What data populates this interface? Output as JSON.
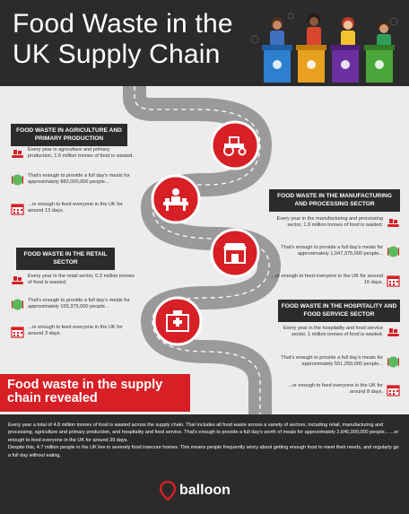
{
  "header": {
    "title": "Food Waste in the UK Supply Chain"
  },
  "sectors": [
    {
      "title": "FOOD WASTE IN AGRICULTURE AND PRIMARY PRODUCTION",
      "facts": [
        {
          "icon": "conveyor-icon",
          "text": "Every year in agriculture and primary production, 1.6 million tonnes of food is wasted."
        },
        {
          "icon": "fork-knife-icon",
          "text": "That's enough to provide a full day's meals for approximately 882,000,000 people..."
        },
        {
          "icon": "calendar-icon",
          "text": "...or enough to feed everyone in the UK for around 13 days."
        }
      ],
      "icon": "tractor-icon"
    },
    {
      "title": "FOOD WASTE IN THE MANUFACTURING AND PROCESSING SECTOR",
      "facts": [
        {
          "icon": "conveyor-icon",
          "text": "Every year in the manufacturing and processing sector, 1.9 million tonnes of food is wasted."
        },
        {
          "icon": "fork-knife-icon",
          "text": "That's enough to provide a full day's meals for approximately 1,047,375,000 people..."
        },
        {
          "icon": "calendar-icon",
          "text": "...or enough to feed everyone in the UK for around 16 days."
        }
      ],
      "icon": "factory-worker-icon"
    },
    {
      "title": "FOOD WASTE IN THE RETAIL SECTOR",
      "facts": [
        {
          "icon": "conveyor-icon",
          "text": "Every year in the retail sector, 0.3 million tonnes of food is wasted."
        },
        {
          "icon": "fork-knife-icon",
          "text": "That's enough to provide a full day's meals for approximately 165,375,000 people..."
        },
        {
          "icon": "calendar-icon",
          "text": "...or enough to feed everyone in the UK for around 3 days."
        }
      ],
      "icon": "shop-icon"
    },
    {
      "title": "FOOD WASTE IN THE HOSPITALITY AND FOOD SERVICE SECTOR",
      "facts": [
        {
          "icon": "conveyor-icon",
          "text": "Every year in the hospitality and food service sector, 1 million tonnes of food is wasted."
        },
        {
          "icon": "fork-knife-icon",
          "text": "That's enough to provide a full day's meals for approximately 551,250,000 people..."
        },
        {
          "icon": "calendar-icon",
          "text": "...or enough to feed everyone in the UK for around 8 days."
        }
      ],
      "icon": "hospital-icon"
    }
  ],
  "banner": {
    "text": "Food waste in the supply chain revealed"
  },
  "footer": {
    "paragraph1": "Every year a total of 4.8 million tonnes of food is wasted across the supply chain. That includes all food waste across a variety of sectors, including retail, manufacturing and processing, agriculture and primary production, and hospitality and food service. That's enough to provide a full day's worth of meals for approximately 2,646,000,000 people... ...or enough to feed everyone in the UK for around 39 days.",
    "paragraph2": "Despite this, 4.7 million people in the UK live in severely food insecure homes.  This means people frequently worry about getting enough food to meet their needs, and regularly go a full day without eating."
  },
  "logo": {
    "text": "balloon",
    "icon": "balloon-pin-icon"
  },
  "colors": {
    "accent": "#d71f26",
    "dark": "#2b2b2b",
    "background": "#ececec",
    "road": "#9a9a9a",
    "bins": [
      "#2d7fd0",
      "#e8a11e",
      "#6c2fa0",
      "#4aa63a"
    ]
  }
}
